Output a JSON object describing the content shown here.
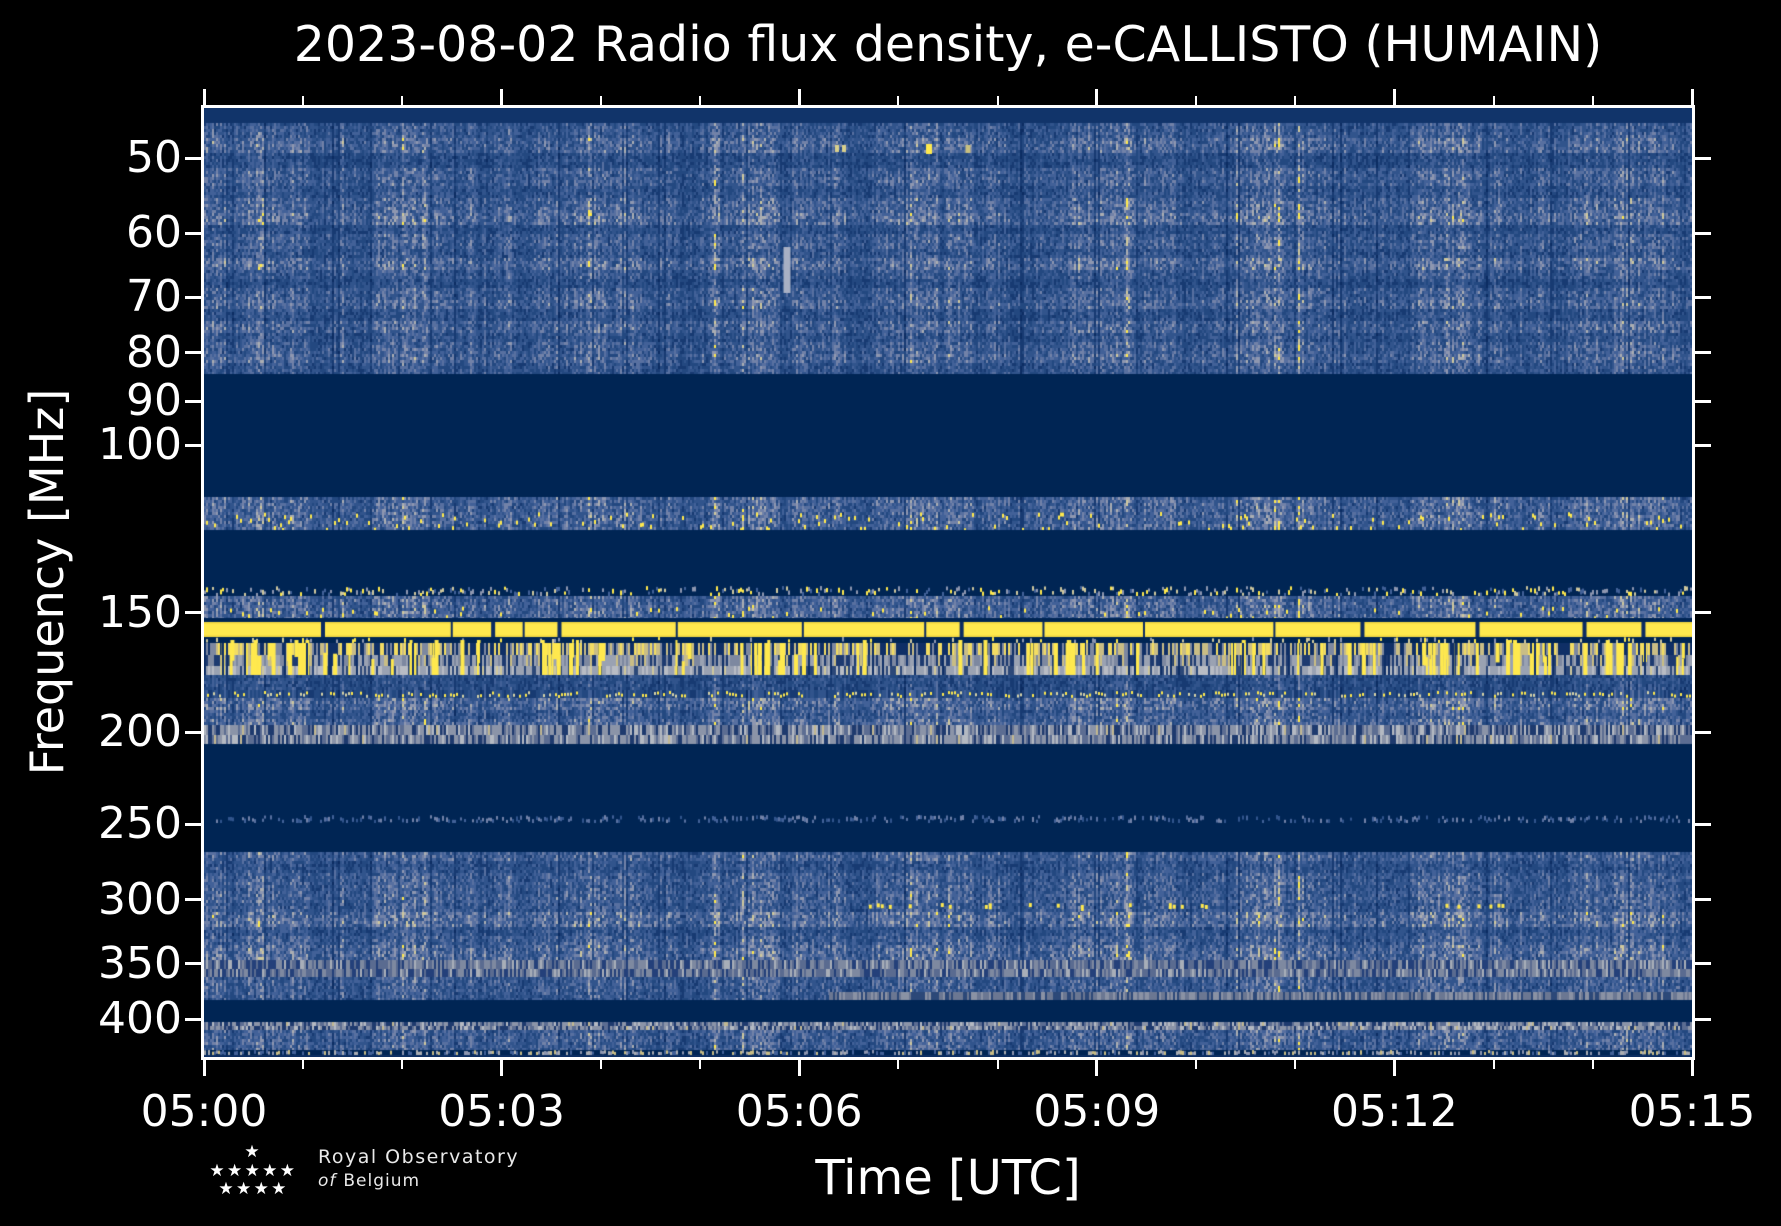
{
  "title": "2023-08-02 Radio flux density, e-CALLISTO (HUMAIN)",
  "axes": {
    "xlabel": "Time [UTC]",
    "ylabel": "Frequency [MHz]",
    "x_major_ticks": [
      "05:00",
      "05:03",
      "05:06",
      "05:09",
      "05:12",
      "05:15"
    ],
    "x_minor_ticks_min": [
      1,
      2,
      4,
      5,
      7,
      8,
      10,
      11,
      13,
      14
    ],
    "y_ticks_mhz": [
      50,
      60,
      70,
      80,
      90,
      100,
      150,
      200,
      250,
      300,
      350,
      400
    ]
  },
  "logo": {
    "line1": "Royal Observatory",
    "line2_italic": "of",
    "line2_rest": "Belgium",
    "star_rows": [
      1,
      5,
      4
    ]
  },
  "chart_data": {
    "type": "heatmap",
    "title": "2023-08-02 Radio flux density, e-CALLISTO (HUMAIN)",
    "xlabel": "Time [UTC]",
    "ylabel": "Frequency [MHz]",
    "x_range_utc": [
      "05:00",
      "05:15"
    ],
    "x_major_ticks": [
      "05:00",
      "05:03",
      "05:06",
      "05:09",
      "05:12",
      "05:15"
    ],
    "x_minor_tick_interval_min": 1,
    "y_scale": "log",
    "y_range_mhz": [
      44.3,
      438
    ],
    "y_ticks_mhz": [
      50,
      60,
      70,
      80,
      90,
      100,
      150,
      200,
      250,
      300,
      350,
      400
    ],
    "grid": false,
    "legend": "none",
    "colors": {
      "figure_background": "#000000",
      "text": "#ffffff",
      "quiet": "#002554",
      "yellow": "#ffe94e",
      "tan": "#c9bd85",
      "gray": "#8e97b0",
      "ramp": [
        "#0c2c62",
        "#173a72",
        "#234880",
        "#31548c",
        "#426198",
        "#5870a0",
        "#7282a8",
        "#8e97b0",
        "#abaeb2",
        "#cfc89e",
        "#ffe94e"
      ]
    },
    "bands": [
      {
        "style": "edge",
        "f1": 44.3,
        "f2": 45.9,
        "color": "#11346a",
        "desc": "top edge row"
      },
      {
        "style": "noise",
        "f1": 45.9,
        "f2": 84.2,
        "level": 0.42,
        "desc": "striated galactic/ionospheric noise 46-84 MHz",
        "rows": [
          [
            45.9,
            47.6,
            1.0
          ],
          [
            47.6,
            49.3,
            1.22
          ],
          [
            49.3,
            51,
            0.8
          ],
          [
            51,
            53.5,
            1.12
          ],
          [
            53.5,
            55,
            0.9
          ],
          [
            55,
            57,
            1.18
          ],
          [
            57,
            58.6,
            1.32
          ],
          [
            58.6,
            60,
            0.84
          ],
          [
            60,
            62,
            1.1
          ],
          [
            62,
            63.5,
            0.92
          ],
          [
            63.5,
            65.5,
            1.28
          ],
          [
            65.5,
            67,
            1.0
          ],
          [
            67,
            68.5,
            0.8
          ],
          [
            68.5,
            70.5,
            1.1
          ],
          [
            70.5,
            72,
            1.22
          ],
          [
            72,
            74,
            0.86
          ],
          [
            74,
            76,
            1.18
          ],
          [
            76,
            78,
            0.9
          ],
          [
            78,
            80,
            1.1
          ],
          [
            80,
            82,
            1.2
          ],
          [
            82,
            84.2,
            0.95
          ]
        ]
      },
      {
        "style": "quiet",
        "f1": 84.2,
        "f2": 113.4,
        "desc": "quiet FM zone"
      },
      {
        "style": "noise",
        "f1": 113.4,
        "f2": 122.8,
        "level": 0.5,
        "yellow_dots": 0.05,
        "desc": "airband with yellow speckles"
      },
      {
        "style": "quiet",
        "f1": 122.8,
        "f2": 140.6
      },
      {
        "style": "speckles",
        "f1": 140.6,
        "f2": 144.0,
        "density": 0.45,
        "palette": [
          "#8e97b0",
          "#cfc89e",
          "#ffe94e",
          "#426198"
        ]
      },
      {
        "style": "noise",
        "f1": 144.0,
        "f2": 151.7,
        "level": 0.52,
        "yellow_dots": 0.025
      },
      {
        "style": "quiet",
        "f1": 151.7,
        "f2": 153.3
      },
      {
        "style": "yellowline",
        "f1": 153.3,
        "f2": 159.1,
        "desc": "continuous bright RFI line ~156 MHz"
      },
      {
        "style": "speckles",
        "f1": 159.1,
        "f2": 161.4,
        "density": 0.12,
        "palette": [
          "#cfc89e",
          "#8e97b0",
          "#ffe94e"
        ]
      },
      {
        "style": "streaks",
        "f1": 161.4,
        "f2": 174.4,
        "streaks": 130,
        "desc": "yellow streak RFI band",
        "layers": [
          [
            161.4,
            166.2,
            "tan"
          ],
          [
            166.2,
            170.6,
            "gray"
          ],
          [
            170.6,
            174.4,
            "palegray"
          ]
        ]
      },
      {
        "style": "noise",
        "f1": 174.4,
        "f2": 180.8,
        "level": 0.33
      },
      {
        "style": "dotrow",
        "f1": 180.8,
        "f2": 184.4,
        "desc": "fine yellow dot row"
      },
      {
        "style": "noise",
        "f1": 184.4,
        "f2": 196.7,
        "level": 0.5,
        "rows": [
          [
            184.4,
            189,
            1.12
          ],
          [
            189,
            193,
            0.9
          ],
          [
            193,
            196.7,
            1.08
          ]
        ]
      },
      {
        "style": "grayband",
        "f1": 196.7,
        "f2": 205.9,
        "bright": 1.0,
        "desc": "gray RFI band ~200 MHz"
      },
      {
        "style": "quiet",
        "f1": 205.9,
        "f2": 244.6
      },
      {
        "style": "speckles",
        "f1": 244.6,
        "f2": 249.4,
        "density": 0.5,
        "palette": [
          "#31548c",
          "#5870a0",
          "#7282a8",
          "#426198"
        ]
      },
      {
        "style": "quiet",
        "f1": 249.4,
        "f2": 267.2
      },
      {
        "style": "noise",
        "f1": 267.2,
        "f2": 334.6,
        "level": 0.46,
        "rows": [
          [
            267.2,
            272,
            1.05
          ],
          [
            272,
            281,
            0.8
          ],
          [
            281,
            295,
            1.0
          ],
          [
            295,
            302,
            1.06
          ],
          [
            302,
            307.4,
            0.95
          ],
          [
            307.4,
            320,
            1.26
          ],
          [
            320,
            327,
            0.84
          ],
          [
            327,
            334.6,
            1.0
          ]
        ]
      },
      {
        "style": "noise",
        "f1": 334.6,
        "f2": 347,
        "level": 0.55
      },
      {
        "style": "graybandsoft",
        "f1": 347,
        "f2": 361.5,
        "desc": "soft gray band ~350 MHz"
      },
      {
        "style": "noise",
        "f1": 361.5,
        "f2": 374.9,
        "level": 0.45
      },
      {
        "style": "noise",
        "f1": 374.9,
        "f2": 382.3,
        "level": 0.42
      },
      {
        "style": "quiet",
        "f1": 382.3,
        "f2": 403.1
      },
      {
        "style": "grayband",
        "f1": 403.1,
        "f2": 411.0,
        "bright": 0.92,
        "desc": "gray band ~405 MHz"
      },
      {
        "style": "noise",
        "f1": 411.0,
        "f2": 431.2,
        "level": 0.47
      },
      {
        "style": "speckles",
        "f1": 431.2,
        "f2": 436.3,
        "density": 0.5,
        "palette": [
          "#8e97b0",
          "#abaeb2",
          "#c9bd85",
          "#426198"
        ]
      },
      {
        "style": "edge",
        "f1": 436.3,
        "f2": 438,
        "color": "#0d2f63"
      }
    ],
    "features": [
      {
        "type": "vdash",
        "t_min": 6.41,
        "f1": 48.4,
        "f2": 49.3,
        "w": 11,
        "color": "#d9d08c",
        "desc": "pale double dash ~05:06:25"
      },
      {
        "type": "vdash",
        "t_min": 7.31,
        "f1": 48.3,
        "f2": 49.5,
        "w": 6,
        "color": "#ffe94e",
        "desc": "bright yellow dash ~05:07:19"
      },
      {
        "type": "vdash",
        "t_min": 7.7,
        "f1": 48.4,
        "f2": 49.4,
        "w": 5,
        "color": "#c9c080",
        "desc": "faint dash ~05:07:42"
      },
      {
        "type": "vdash",
        "t_min": 5.88,
        "f1": 62,
        "f2": 69.2,
        "w": 7,
        "color": "#a8b0c4",
        "desc": "short burst streak near 70 MHz ~05:06"
      },
      {
        "type": "dotline",
        "f1": 302,
        "f2": 307,
        "density": 0.22,
        "color": "#ffe94e",
        "x_ranges_min": [
          [
            6.5,
            10.1
          ],
          [
            11.95,
            13.1
          ]
        ],
        "desc": "yellow dot row ~303 MHz"
      },
      {
        "type": "halfband",
        "f1": 374.9,
        "f2": 382.3,
        "t_start_min": 6.3,
        "palette": [
          "#6b7792",
          "#8a92a4",
          "#2c4878"
        ],
        "desc": "gray band appearing after ~05:06"
      }
    ]
  }
}
